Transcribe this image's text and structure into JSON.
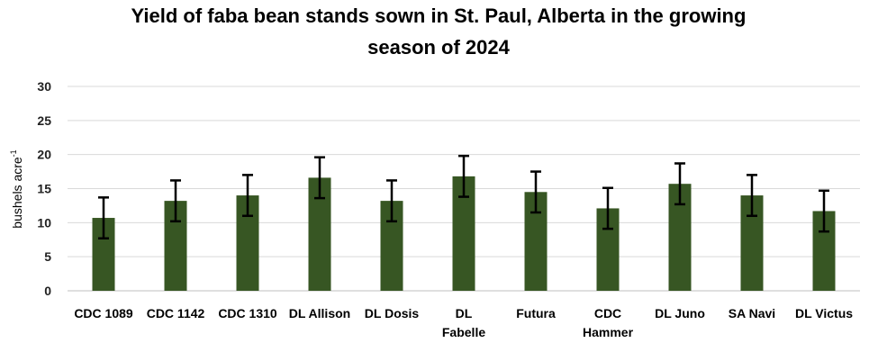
{
  "chart_data": {
    "type": "bar",
    "title_lines": [
      "Yield of faba bean stands sown in St. Paul, Alberta in the growing",
      "season of 2024"
    ],
    "ylabel": "bushels acre",
    "ylabel_superscript": "-1",
    "ylim": [
      0,
      30
    ],
    "yticks": [
      "0",
      "5",
      "10",
      "15",
      "20",
      "25",
      "30"
    ],
    "grid": true,
    "legend": "none",
    "categories": [
      "CDC 1089",
      "CDC 1142",
      "CDC 1310",
      "DL Allison",
      "DL Dosis",
      "DL Fabelle",
      "Futura",
      "CDC Hammer",
      "DL Juno",
      "SA Navi",
      "DL Victus"
    ],
    "category_label_lines": [
      [
        "CDC 1089"
      ],
      [
        "CDC 1142"
      ],
      [
        "CDC 1310"
      ],
      [
        "DL Allison"
      ],
      [
        "DL Dosis"
      ],
      [
        "DL",
        "Fabelle"
      ],
      [
        "Futura"
      ],
      [
        "CDC",
        "Hammer"
      ],
      [
        "DL Juno"
      ],
      [
        "SA Navi"
      ],
      [
        "DL Victus"
      ]
    ],
    "values": [
      10.7,
      13.2,
      14.0,
      16.6,
      13.2,
      16.8,
      14.5,
      12.1,
      15.7,
      14.0,
      11.7
    ],
    "error": [
      3.0,
      3.0,
      3.0,
      3.0,
      3.0,
      3.0,
      3.0,
      3.0,
      3.0,
      3.0,
      3.0
    ],
    "colors": {
      "bar": "#375623",
      "error_bar": "#000000",
      "grid": "#d9d9d9",
      "axis": "#bfbfbf"
    }
  }
}
